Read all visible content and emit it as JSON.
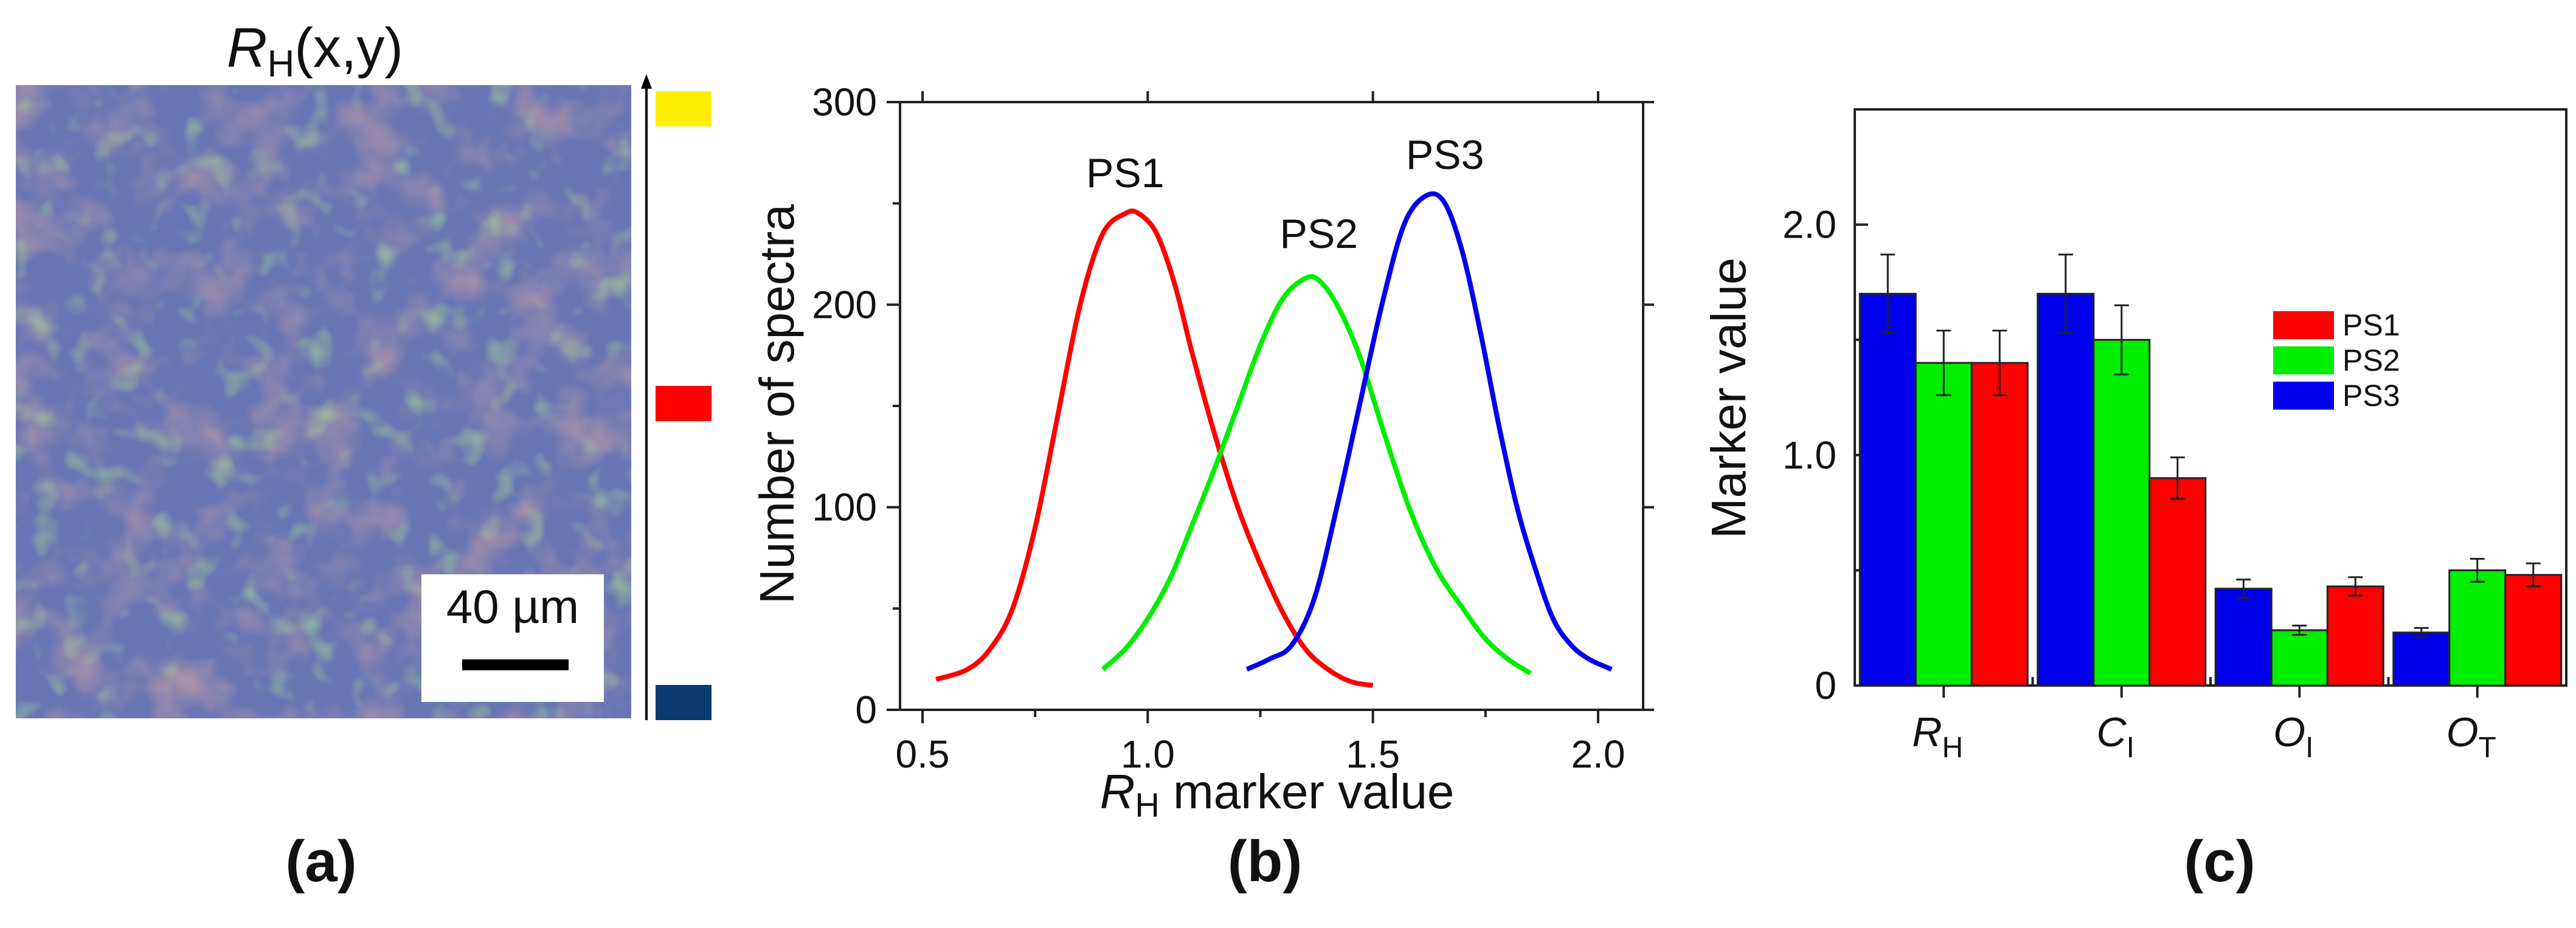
{
  "panel_a": {
    "title_main": "R",
    "title_sub": "H",
    "title_rest": "(x,y)",
    "scale_label": "40 µm",
    "color_key": [
      "#ffee00",
      "#ff0000",
      "#0a3b6e"
    ],
    "panel_label": "(a)"
  },
  "panel_b": {
    "panel_label": "(b)",
    "curve_labels": [
      "PS1",
      "PS2",
      "PS3"
    ]
  },
  "panel_c": {
    "panel_label": "(c)"
  },
  "chart_data": [
    {
      "type": "line",
      "title": "",
      "xlabel_main": "R",
      "xlabel_sub": "H",
      "xlabel_rest": " marker value",
      "ylabel": "Number of spectra",
      "xlim": [
        0.45,
        2.1
      ],
      "ylim": [
        0,
        300
      ],
      "xticks": [
        0.5,
        1.0,
        1.5,
        2.0
      ],
      "xtick_labels": [
        "0.5",
        "1.0",
        "1.5",
        "2.0"
      ],
      "yticks": [
        0,
        100,
        200,
        300
      ],
      "ytick_labels": [
        "0",
        "100",
        "200",
        "300"
      ],
      "series": [
        {
          "name": "PS1",
          "color": "#ff0000",
          "x": [
            0.53,
            0.6,
            0.65,
            0.7,
            0.75,
            0.8,
            0.85,
            0.9,
            0.95,
            0.98,
            1.02,
            1.06,
            1.1,
            1.15,
            1.2,
            1.25,
            1.3,
            1.35,
            1.4,
            1.45,
            1.5
          ],
          "y": [
            15,
            20,
            30,
            50,
            90,
            145,
            200,
            235,
            245,
            245,
            235,
            210,
            175,
            135,
            100,
            72,
            48,
            30,
            20,
            14,
            12
          ]
        },
        {
          "name": "PS2",
          "color": "#00ee00",
          "x": [
            0.9,
            0.95,
            1.0,
            1.05,
            1.1,
            1.15,
            1.2,
            1.25,
            1.3,
            1.35,
            1.38,
            1.42,
            1.47,
            1.52,
            1.58,
            1.64,
            1.7,
            1.75,
            1.8,
            1.85
          ],
          "y": [
            20,
            30,
            45,
            65,
            92,
            120,
            150,
            180,
            203,
            213,
            212,
            200,
            175,
            140,
            100,
            70,
            50,
            35,
            25,
            18
          ]
        },
        {
          "name": "PS3",
          "color": "#0000ee",
          "x": [
            1.22,
            1.27,
            1.32,
            1.37,
            1.42,
            1.47,
            1.52,
            1.57,
            1.62,
            1.66,
            1.7,
            1.74,
            1.78,
            1.82,
            1.86,
            1.9,
            1.94,
            1.98,
            2.03
          ],
          "y": [
            20,
            25,
            32,
            55,
            100,
            150,
            200,
            240,
            254,
            250,
            225,
            185,
            140,
            100,
            70,
            45,
            32,
            25,
            20
          ]
        }
      ],
      "annotations": [
        {
          "text": "PS1",
          "x": 0.95,
          "y": 258
        },
        {
          "text": "PS2",
          "x": 1.38,
          "y": 228
        },
        {
          "text": "PS3",
          "x": 1.66,
          "y": 267
        }
      ]
    },
    {
      "type": "bar",
      "title": "",
      "ylabel": "Marker value",
      "ylim": [
        0,
        2.5
      ],
      "yticks": [
        0,
        1.0,
        2.0
      ],
      "ytick_labels": [
        "0",
        "1.0",
        "2.0"
      ],
      "categories": [
        {
          "main": "R",
          "sub": "H"
        },
        {
          "main": "C",
          "sub": "I"
        },
        {
          "main": "O",
          "sub": "I"
        },
        {
          "main": "O",
          "sub": "T"
        }
      ],
      "bar_order": [
        "PS3",
        "PS2",
        "PS1"
      ],
      "series": [
        {
          "name": "PS1",
          "color": "#ff0000",
          "values": [
            1.4,
            0.9,
            0.43,
            0.48
          ],
          "errors": [
            0.14,
            0.09,
            0.04,
            0.05
          ]
        },
        {
          "name": "PS2",
          "color": "#00ee00",
          "values": [
            1.4,
            1.5,
            0.24,
            0.5
          ],
          "errors": [
            0.14,
            0.15,
            0.02,
            0.05
          ]
        },
        {
          "name": "PS3",
          "color": "#0000ee",
          "values": [
            1.7,
            1.7,
            0.42,
            0.23
          ],
          "errors": [
            0.17,
            0.17,
            0.04,
            0.02
          ]
        }
      ],
      "legend": {
        "position": "center-right",
        "entries": [
          "PS1",
          "PS2",
          "PS3"
        ]
      }
    }
  ]
}
